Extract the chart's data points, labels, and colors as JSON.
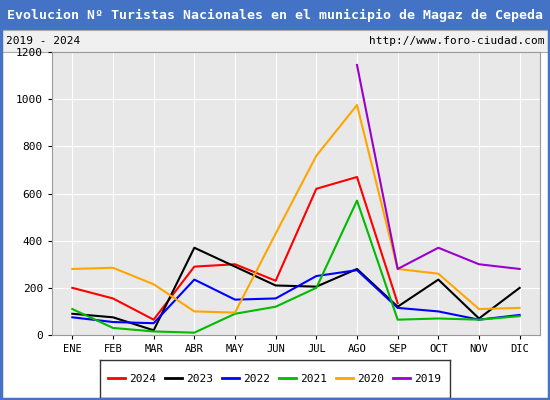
{
  "title": "Evolucion Nº Turistas Nacionales en el municipio de Magaz de Cepeda",
  "subtitle_left": "2019 - 2024",
  "subtitle_right": "http://www.foro-ciudad.com",
  "months": [
    "ENE",
    "FEB",
    "MAR",
    "ABR",
    "MAY",
    "JUN",
    "JUL",
    "AGO",
    "SEP",
    "OCT",
    "NOV",
    "DIC"
  ],
  "series": {
    "2024": {
      "color": "#ff0000",
      "data": [
        200,
        155,
        65,
        290,
        300,
        230,
        620,
        670,
        135,
        null,
        null,
        null
      ]
    },
    "2023": {
      "color": "#000000",
      "data": [
        90,
        75,
        20,
        370,
        290,
        210,
        205,
        280,
        120,
        235,
        70,
        200
      ]
    },
    "2022": {
      "color": "#0000ff",
      "data": [
        75,
        55,
        50,
        235,
        150,
        155,
        250,
        275,
        115,
        100,
        65,
        85
      ]
    },
    "2021": {
      "color": "#00bb00",
      "data": [
        110,
        30,
        15,
        10,
        90,
        120,
        200,
        570,
        65,
        70,
        65,
        80
      ]
    },
    "2020": {
      "color": "#ffa500",
      "data": [
        280,
        285,
        215,
        100,
        95,
        430,
        760,
        975,
        280,
        260,
        110,
        115
      ]
    },
    "2019": {
      "color": "#9900cc",
      "data": [
        null,
        null,
        null,
        null,
        null,
        null,
        null,
        1145,
        280,
        370,
        300,
        280
      ]
    }
  },
  "ylim": [
    0,
    1200
  ],
  "yticks": [
    0,
    200,
    400,
    600,
    800,
    1000,
    1200
  ],
  "title_bg_color": "#4472c4",
  "title_text_color": "#ffffff",
  "plot_bg_color": "#e8e8e8",
  "border_color": "#4472c4",
  "grid_color": "#ffffff",
  "subtitle_bg_color": "#f0f0f0",
  "legend_order": [
    "2024",
    "2023",
    "2022",
    "2021",
    "2020",
    "2019"
  ]
}
